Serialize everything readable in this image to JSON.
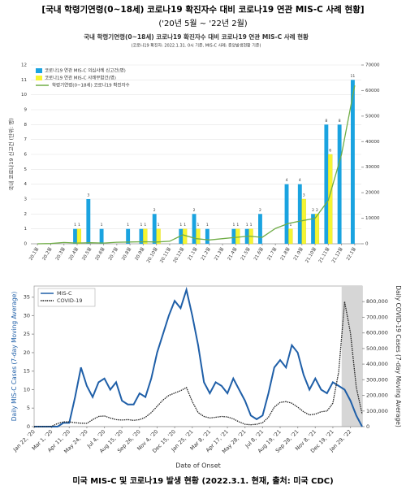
{
  "header": {
    "title": "[국내 학령기연령(0~18세) 코로나19 확진자수 대비 코로나19 연관 MIS-C 사례 현황]",
    "subtitle": "('20년 5월 ~ '22년 2월)"
  },
  "caption": "미국 MIS-C 및 코로나19 발생 현황 (2022.3.1. 현재, 출처: 미국 CDC)",
  "chart_data": [
    {
      "type": "bar",
      "title": "국내 학령기연령(0~18세) 코로나19 확진자수 대비 코로나19 연관 MIS-C 사례 현황",
      "subtitle": "(코로나19 확진자: 2022.1.31. 0시 기준, MIS-C 사례: 중앙발생현황 기준)",
      "y_label": "국내 코로나19 신고건 (단위: 명)",
      "categories": [
        "20.1월",
        "20.2월",
        "20.3월",
        "20.4월",
        "20.5월",
        "20.6월",
        "20.7월",
        "20.8월",
        "20.9월",
        "20.10월",
        "20.11월",
        "20.12월",
        "21.1월",
        "21.2월",
        "21.3월",
        "21.4월",
        "21.5월",
        "21.6월",
        "21.7월",
        "21.8월",
        "21.9월",
        "21.10월",
        "21.11월",
        "21.12월",
        "22.1월"
      ],
      "series": [
        {
          "name": "코로나19 연관 MIS-C 의심사례 신고건(명)",
          "color": "#1aa3e0",
          "values": [
            0,
            0,
            0,
            1,
            3,
            1,
            0,
            1,
            1,
            2,
            0,
            1,
            2,
            1,
            0,
            1,
            1,
            2,
            0,
            4,
            4,
            2,
            8,
            8,
            11
          ]
        },
        {
          "name": "코로나19 연관 MIS-C 사례부합건(명)",
          "color": "#f5f532",
          "values": [
            0,
            0,
            0,
            1,
            0,
            0,
            0,
            0,
            1,
            1,
            0,
            1,
            1,
            0,
            0,
            1,
            1,
            0,
            0,
            1,
            3,
            2,
            6,
            0,
            0
          ]
        },
        {
          "name": "학령기연령(0~18세) 코로나19 확진자수",
          "color": "#70ad47",
          "axis": "y2",
          "values": [
            0,
            100,
            500,
            300,
            400,
            300,
            600,
            700,
            800,
            700,
            1000,
            3500,
            2000,
            1500,
            2000,
            2500,
            3000,
            2500,
            6000,
            8000,
            9000,
            10000,
            17000,
            35000,
            62000
          ]
        }
      ],
      "ylim": [
        0,
        12
      ],
      "yticks": [
        0,
        1,
        2,
        3,
        4,
        5,
        6,
        7,
        8,
        9,
        10,
        11,
        12
      ],
      "y2lim": [
        0,
        70000
      ],
      "y2ticks": [
        0,
        10000,
        20000,
        30000,
        40000,
        50000,
        60000,
        70000
      ],
      "grid": true,
      "legend": "top-left"
    },
    {
      "type": "line",
      "x_label": "Date of Onset",
      "y_label": "Daily MIS-C Cases (7-day Moving Average)",
      "y2_label": "Daily COVID-19 Cases (7-day Moving Average)",
      "categories": [
        "Jan 22, '20",
        null,
        null,
        "Mar 1, '20",
        null,
        null,
        "Apr 11, '20",
        null,
        null,
        "May 24, '20",
        null,
        null,
        "Jul 4, '20",
        null,
        null,
        "Aug 15, '20",
        null,
        null,
        "Sep 26, '20",
        null,
        null,
        "Nov 4, '20",
        null,
        null,
        "Dec 15, '20",
        null,
        null,
        "Jan 25, '21",
        null,
        null,
        "Mar 8, '21",
        null,
        null,
        "Apr 17, '21",
        null,
        null,
        "May 28, '21",
        null,
        null,
        "Jul 8, '21",
        null,
        null,
        "Aug 19, '21",
        null,
        null,
        "Sep 28, '21",
        null,
        null,
        "Nov 8, '21",
        null,
        null,
        "Dec 19, '21",
        null,
        null,
        "Jan 29, '22",
        null,
        null
      ],
      "series": [
        {
          "name": "MIS-C",
          "color": "#1f5fa8",
          "values": [
            0,
            0,
            0,
            0,
            0,
            1,
            1,
            8,
            16,
            11,
            8,
            12,
            13,
            10,
            12,
            7,
            6,
            6,
            9,
            8,
            13,
            20,
            25,
            30,
            34,
            32,
            37,
            30,
            22,
            12,
            9,
            12,
            11,
            9,
            13,
            10,
            7,
            3,
            2,
            3,
            9,
            16,
            18,
            16,
            22,
            20,
            14,
            10,
            13,
            10,
            9,
            12,
            11,
            10,
            7,
            3,
            0
          ]
        },
        {
          "name": "COVID-19",
          "color": "#222222",
          "axis": "y2",
          "values": [
            0,
            0,
            0,
            2000,
            20000,
            30000,
            30000,
            25000,
            22000,
            21000,
            45000,
            65000,
            68000,
            55000,
            45000,
            42000,
            45000,
            40000,
            45000,
            60000,
            90000,
            130000,
            170000,
            200000,
            215000,
            230000,
            250000,
            160000,
            90000,
            65000,
            55000,
            60000,
            65000,
            62000,
            50000,
            30000,
            15000,
            12000,
            15000,
            25000,
            60000,
            125000,
            155000,
            160000,
            150000,
            125000,
            95000,
            75000,
            80000,
            95000,
            100000,
            150000,
            350000,
            800000,
            600000,
            250000,
            80000
          ]
        }
      ],
      "ylim": [
        0,
        38
      ],
      "yticks": [
        0,
        5,
        10,
        15,
        20,
        25,
        30,
        35
      ],
      "y2lim": [
        0,
        900000
      ],
      "y2ticks": [
        0,
        {
          "value": 100000,
          "label": "100,000"
        },
        {
          "value": 200000,
          "label": "200,000"
        },
        {
          "value": 300000,
          "label": "300,000"
        },
        {
          "value": 400000,
          "label": "400,000"
        },
        {
          "value": 500000,
          "label": "500,000"
        },
        {
          "value": 600000,
          "label": "600,000"
        },
        {
          "value": 700000,
          "label": "700,000"
        },
        {
          "value": 800000,
          "label": "800,000"
        }
      ],
      "grid": false,
      "legend": "top-left"
    }
  ]
}
